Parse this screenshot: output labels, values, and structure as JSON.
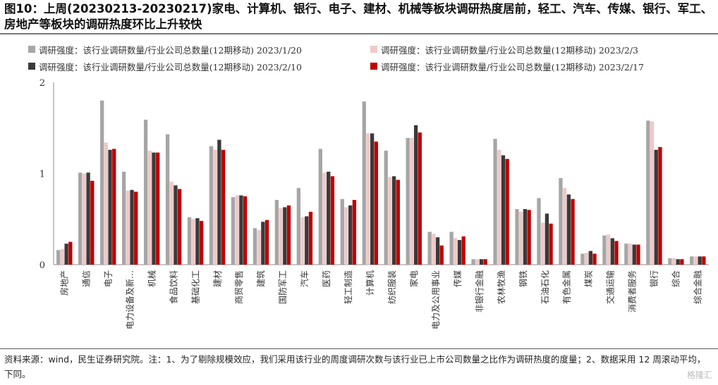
{
  "title": "图10：上周(20230213-20230217)家电、计算机、银行、电子、建材、机械等板块调研热度居前，轻工、汽车、传媒、银行、军工、房地产等板块的调研热度环比上升较快",
  "source": "资料来源：wind，民生证券研究院。注：1、为了剔除规模效应，我们采用该行业的周度调研次数与该行业已上市公司数量之比作为调研热度的度量；2、数据采用 12 周滚动平均，下同。",
  "watermark": "格隆汇",
  "chart_data": {
    "type": "bar",
    "ylim": [
      0,
      2
    ],
    "yticks": [
      "0",
      "1",
      "2"
    ],
    "legend_position": "top",
    "grid": false,
    "categories": [
      "房地产",
      "通信",
      "电子",
      "电力设备及新…",
      "机械",
      "食品饮料",
      "基础化工",
      "建材",
      "商贸零售",
      "建筑",
      "国防军工",
      "汽车",
      "医药",
      "轻工制造",
      "计算机",
      "纺织服装",
      "家电",
      "电力及公用事业",
      "传媒",
      "非银行金融",
      "农林牧渔",
      "钢铁",
      "石油石化",
      "有色金属",
      "煤炭",
      "交通运输",
      "消费者服务",
      "银行",
      "综合",
      "综合金融"
    ],
    "series": [
      {
        "name": "调研强度：该行业调研数量/行业公司总数量(12期移动) 2023/1/20",
        "color": "#a6a6a6",
        "values": [
          0.16,
          1.01,
          1.8,
          1.02,
          1.59,
          1.43,
          0.52,
          1.3,
          0.74,
          0.4,
          0.71,
          0.84,
          1.27,
          0.72,
          1.79,
          1.25,
          1.39,
          0.36,
          0.36,
          0.06,
          1.38,
          0.61,
          0.73,
          0.95,
          0.12,
          0.32,
          0.23,
          1.58,
          0.07,
          0.09
        ]
      },
      {
        "name": "调研强度：该行业调研数量/行业公司总数量(12期移动) 2023/2/3",
        "color": "#f0c8c8",
        "values": [
          0.17,
          1.0,
          1.34,
          0.81,
          1.25,
          0.91,
          0.5,
          1.26,
          0.76,
          0.38,
          0.62,
          0.52,
          1.01,
          0.63,
          1.44,
          0.96,
          1.39,
          0.34,
          0.29,
          0.06,
          1.26,
          0.58,
          0.46,
          0.84,
          0.13,
          0.33,
          0.23,
          1.57,
          0.07,
          0.09
        ]
      },
      {
        "name": "调研强度：该行业调研数量/行业公司总数量(12期移动) 2023/2/10",
        "color": "#3a3a3a",
        "values": [
          0.23,
          1.01,
          1.26,
          0.82,
          1.23,
          0.87,
          0.51,
          1.37,
          0.76,
          0.47,
          0.63,
          0.53,
          1.02,
          0.65,
          1.44,
          0.97,
          1.53,
          0.3,
          0.27,
          0.06,
          1.2,
          0.61,
          0.56,
          0.77,
          0.15,
          0.29,
          0.22,
          1.26,
          0.06,
          0.09
        ]
      },
      {
        "name": "调研强度：该行业调研数量/行业公司总数量(12期移动) 2023/2/17",
        "color": "#c00000",
        "values": [
          0.25,
          0.92,
          1.27,
          0.8,
          1.23,
          0.83,
          0.48,
          1.26,
          0.75,
          0.49,
          0.65,
          0.58,
          0.97,
          0.71,
          1.35,
          0.93,
          1.45,
          0.21,
          0.31,
          0.06,
          1.16,
          0.6,
          0.45,
          0.72,
          0.12,
          0.26,
          0.22,
          1.29,
          0.06,
          0.09
        ]
      }
    ]
  }
}
